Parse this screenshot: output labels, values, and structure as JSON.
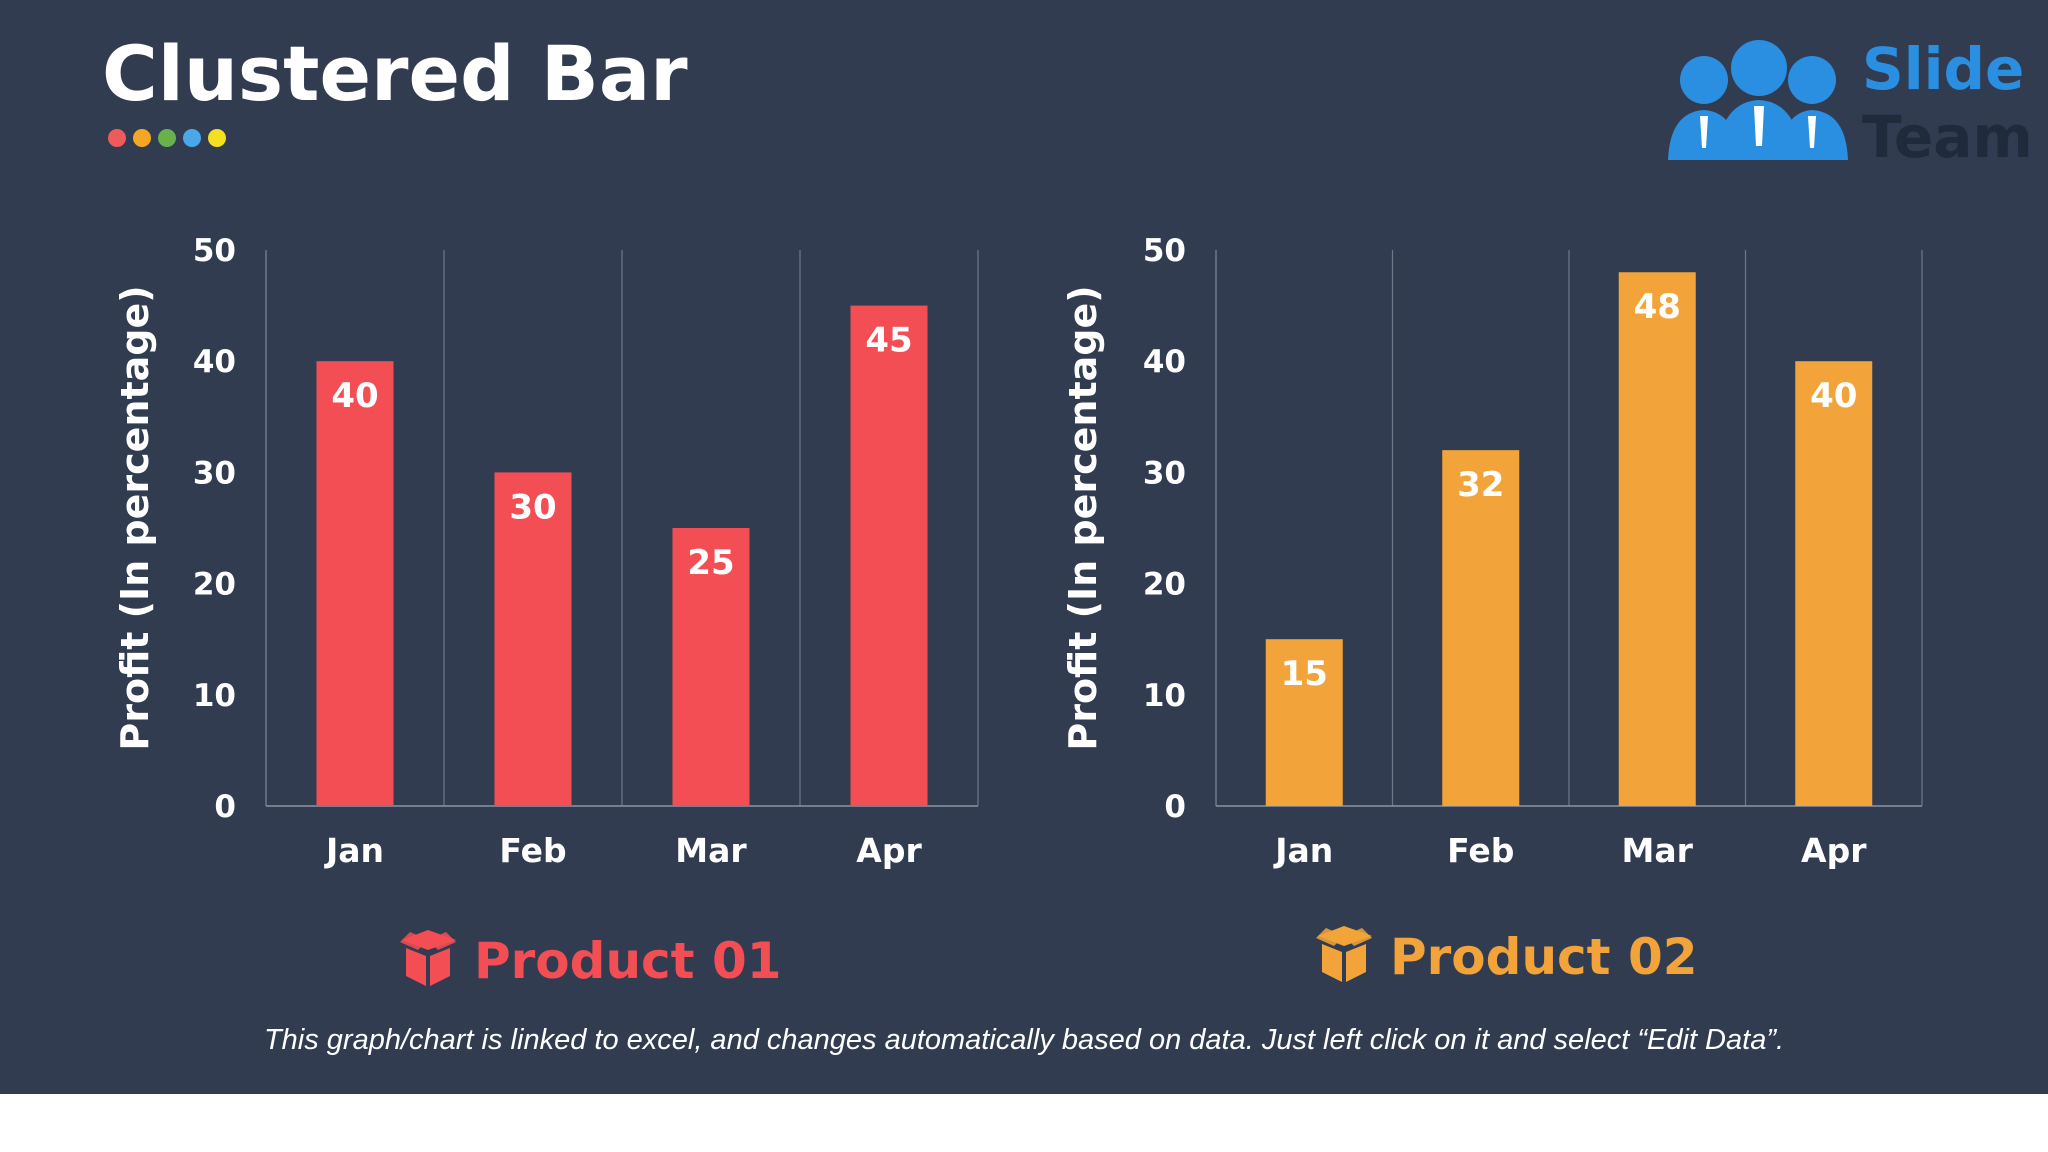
{
  "slide": {
    "title": "Clustered Bar",
    "dots": [
      "#f15a5a",
      "#f5a623",
      "#6ab04c",
      "#4aa8e8",
      "#f5e020"
    ],
    "footnote": "This graph/chart is linked to excel, and changes automatically based on data. Just left click on it and select “Edit Data”."
  },
  "logo": {
    "line1": "Slide",
    "line2": "Team",
    "accent": "#2a8fe0",
    "dark": "#1f2a3b",
    "icon": "team-people-icon"
  },
  "chart_data": [
    {
      "type": "bar",
      "categories": [
        "Jan",
        "Feb",
        "Mar",
        "Apr"
      ],
      "values": [
        40,
        30,
        25,
        45
      ],
      "ylabel": "Profit  (In percentage)",
      "yticks": [
        0,
        10,
        20,
        30,
        40,
        50
      ],
      "ylim": [
        0,
        50
      ],
      "grid": "vertical",
      "color": "#f44e55",
      "legend_label": "Product 01",
      "legend_icon": "gift-box-icon"
    },
    {
      "type": "bar",
      "categories": [
        "Jan",
        "Feb",
        "Mar",
        "Apr"
      ],
      "values": [
        15,
        32,
        48,
        40
      ],
      "ylabel": "Profit  (In percentage)",
      "yticks": [
        0,
        10,
        20,
        30,
        40,
        50
      ],
      "ylim": [
        0,
        50
      ],
      "grid": "vertical",
      "color": "#f2a43a",
      "legend_label": "Product 02",
      "legend_icon": "gift-box-icon"
    }
  ]
}
